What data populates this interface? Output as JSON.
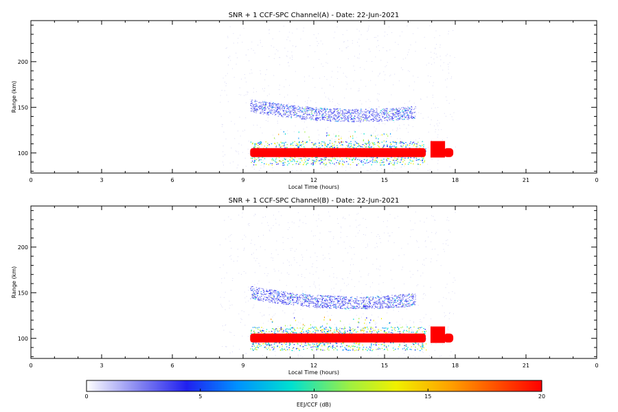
{
  "chart_data": [
    {
      "type": "heatmap",
      "title": "SNR + 1 CCF-SPC Channel(A) - Date: 22-Jun-2021",
      "xlabel": "Local Time (hours)",
      "ylabel": "Range (km)",
      "xlim": [
        0,
        24
      ],
      "ylim": [
        78,
        245
      ],
      "x_ticks": [
        "0",
        "3",
        "6",
        "9",
        "12",
        "15",
        "18",
        "21",
        "0"
      ],
      "y_ticks": [
        100,
        150,
        200
      ],
      "features": [
        {
          "name": "strong echo band",
          "x_start": 9.3,
          "x_end": 17.8,
          "y_center": 100,
          "value_db": 20
        },
        {
          "name": "weak echo layer",
          "x_start": 9.3,
          "x_end": 16.3,
          "y_center": 147,
          "value_db": 3
        }
      ]
    },
    {
      "type": "heatmap",
      "title": "SNR + 1 CCF-SPC Channel(B) - Date: 22-Jun-2021",
      "xlabel": "Local Time (hours)",
      "ylabel": "Range (km)",
      "xlim": [
        0,
        24
      ],
      "ylim": [
        78,
        245
      ],
      "x_ticks": [
        "0",
        "3",
        "6",
        "9",
        "12",
        "15",
        "18",
        "21",
        "0"
      ],
      "y_ticks": [
        100,
        150,
        200
      ],
      "features": [
        {
          "name": "strong echo band",
          "x_start": 9.3,
          "x_end": 17.8,
          "y_center": 100,
          "value_db": 20
        },
        {
          "name": "weak echo layer",
          "x_start": 9.3,
          "x_end": 16.3,
          "y_center": 145,
          "value_db": 3
        }
      ]
    }
  ],
  "colorbar": {
    "label": "EEJ/CCF (dB)",
    "min": 0,
    "max": 20,
    "ticks": [
      "0",
      "5",
      "10",
      "15",
      "20"
    ]
  }
}
